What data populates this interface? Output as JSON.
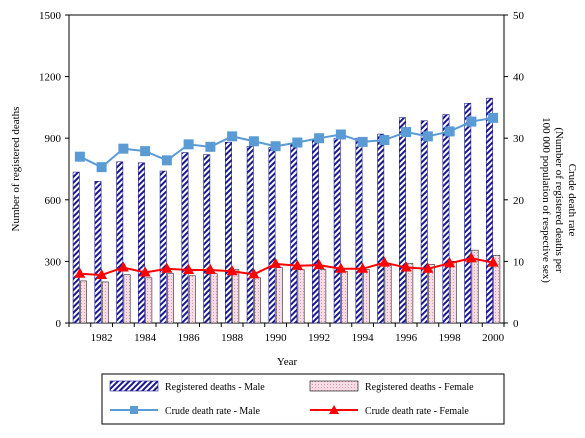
{
  "chart_data": {
    "type": "bar",
    "x": [
      1981,
      1982,
      1983,
      1984,
      1985,
      1986,
      1987,
      1988,
      1989,
      1990,
      1991,
      1992,
      1993,
      1994,
      1995,
      1996,
      1997,
      1998,
      1999,
      2000
    ],
    "x_tick_labels": [
      "1982",
      "1984",
      "1986",
      "1988",
      "1990",
      "1992",
      "1994",
      "1996",
      "1998",
      "2000"
    ],
    "xlabel": "Year",
    "ylabel_left": "Number of registered deaths",
    "ylabel_right": "Crude death rate",
    "ylabel_right_sub": "(Number of registered deaths per",
    "ylabel_right_sub2": "100 000 population of respective sex)",
    "ylim_left": [
      0,
      1500
    ],
    "ylim_right": [
      0,
      50
    ],
    "left_ticks": [
      "0",
      "300",
      "600",
      "900",
      "1200",
      "1500"
    ],
    "right_ticks": [
      "0",
      "10",
      "20",
      "30",
      "40",
      "50"
    ],
    "grid": false,
    "legend_position": "bottom",
    "series": [
      {
        "name": "Registered deaths - Male",
        "kind": "bar",
        "axis": "left",
        "color": "#1a1a8c",
        "values": [
          735,
          690,
          785,
          780,
          740,
          830,
          820,
          880,
          860,
          855,
          870,
          890,
          900,
          900,
          920,
          1000,
          985,
          1015,
          1070,
          1095
        ]
      },
      {
        "name": "Registered deaths - Female",
        "kind": "bar",
        "axis": "left",
        "color": "#f2c8d8",
        "values": [
          205,
          200,
          235,
          220,
          240,
          230,
          240,
          260,
          220,
          270,
          260,
          260,
          250,
          260,
          280,
          290,
          285,
          300,
          355,
          330
        ]
      },
      {
        "name": "Crude death rate - Male",
        "kind": "line",
        "axis": "right",
        "color": "#5b9bd5",
        "marker": "square",
        "values": [
          27.0,
          25.3,
          28.3,
          27.9,
          26.4,
          29.0,
          28.6,
          30.3,
          29.5,
          28.7,
          29.3,
          30.0,
          30.6,
          29.4,
          29.7,
          31.0,
          30.3,
          31.1,
          32.7,
          33.3
        ]
      },
      {
        "name": "Crude death rate - Female",
        "kind": "line",
        "axis": "right",
        "color": "#ff0000",
        "marker": "triangle",
        "values": [
          8.0,
          7.8,
          9.0,
          8.2,
          8.8,
          8.6,
          8.6,
          8.4,
          7.9,
          9.6,
          9.3,
          9.4,
          8.8,
          8.8,
          9.8,
          9.0,
          8.8,
          9.7,
          10.5,
          9.8
        ]
      }
    ]
  }
}
